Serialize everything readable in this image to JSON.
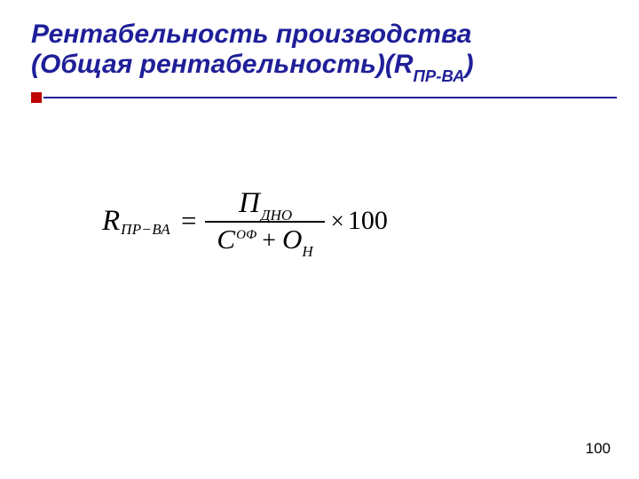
{
  "title": {
    "line1": "Рентабельность производства",
    "line2_prefix": "(Общая рентабельность)(R",
    "line2_sub": "ПР-ВА",
    "line2_suffix": ")",
    "color": "#1f1f99",
    "fontsize": 30
  },
  "accent": {
    "square_color": "#c00000",
    "line_color": "#1f1f99"
  },
  "formula": {
    "lhs_var": "R",
    "lhs_sub": "ПР−ВА",
    "eq": "=",
    "num_var": "П",
    "num_sub": "ДНО",
    "den_var1": "С",
    "den_sup1": "ОФ",
    "den_plus": "+",
    "den_var2": "О",
    "den_sub2": "Н",
    "times": "×",
    "const_100": "100"
  },
  "page_number": {
    "value": "100",
    "fontsize": 17,
    "color": "#000000"
  }
}
